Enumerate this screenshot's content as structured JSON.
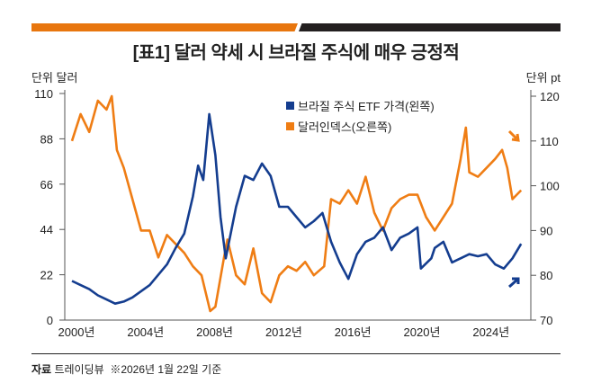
{
  "title": "[표1] 달러 약세 시 브라질 주식에 매우 긍정적",
  "left_unit": "단위 달러",
  "right_unit": "단위 pt",
  "source_label": "자료",
  "source_text": "트레이딩뷰",
  "note": "※2026년 1월 22일 기준",
  "colors": {
    "etf": "#143d8f",
    "dollar": "#ef7d14",
    "accent_bar": "#e8760e",
    "dark_bar": "#231f20"
  },
  "chart_data": {
    "type": "line",
    "title": "[표1] 달러 약세 시 브라질 주식에 매우 긍정적",
    "xlabel": "",
    "ylabel": "단위 달러",
    "y2label": "단위 pt",
    "xlim": [
      2000,
      2026.1
    ],
    "ylim": [
      0,
      110
    ],
    "y2lim": [
      70,
      120
    ],
    "x_ticks": [
      2000,
      2004,
      2008,
      2012,
      2016,
      2020,
      2024
    ],
    "x_tick_labels": [
      "2000년",
      "2004년",
      "2008년",
      "2012년",
      "2016년",
      "2020년",
      "2024년"
    ],
    "y_ticks": [
      0,
      22,
      44,
      66,
      88,
      110
    ],
    "y2_ticks": [
      70,
      80,
      90,
      100,
      110,
      120
    ],
    "legend_position": "top-right",
    "series": [
      {
        "name": "브라질 주식 ETF 가격(왼쪽)",
        "axis": "left",
        "x": [
          2000,
          2000.5,
          2001,
          2001.5,
          2002,
          2002.5,
          2003,
          2003.5,
          2004,
          2004.5,
          2005,
          2005.5,
          2006,
          2006.5,
          2007,
          2007.3,
          2007.6,
          2007.95,
          2008.3,
          2008.6,
          2008.9,
          2009.5,
          2010,
          2010.5,
          2011,
          2011.5,
          2012,
          2012.5,
          2013,
          2013.5,
          2014,
          2014.5,
          2015,
          2015.5,
          2016,
          2016.5,
          2017,
          2017.5,
          2018,
          2018.5,
          2019,
          2019.5,
          2020,
          2020.2,
          2020.8,
          2021,
          2021.5,
          2022,
          2022.5,
          2023,
          2023.5,
          2024,
          2024.5,
          2025,
          2025.5,
          2026
        ],
        "values": [
          19,
          17,
          15,
          12,
          10,
          8,
          9,
          11,
          14,
          17,
          22,
          27,
          35,
          42,
          60,
          75,
          68,
          100,
          80,
          50,
          30,
          55,
          70,
          68,
          76,
          70,
          55,
          55,
          50,
          45,
          48,
          52,
          38,
          28,
          20,
          32,
          38,
          40,
          45,
          34,
          40,
          42,
          45,
          25,
          30,
          35,
          38,
          28,
          30,
          32,
          31,
          32,
          27,
          25,
          30,
          37
        ]
      },
      {
        "name": "달러인덱스(오른쪽)",
        "axis": "right",
        "x": [
          2000,
          2000.5,
          2001,
          2001.5,
          2002,
          2002.3,
          2002.6,
          2003,
          2003.5,
          2004,
          2004.5,
          2005,
          2005.5,
          2006,
          2006.5,
          2007,
          2007.5,
          2008,
          2008.3,
          2008.8,
          2009,
          2009.5,
          2010,
          2010.5,
          2011,
          2011.5,
          2012,
          2012.5,
          2013,
          2013.5,
          2014,
          2014.6,
          2015,
          2015.5,
          2016,
          2016.5,
          2017,
          2017.5,
          2018,
          2018.5,
          2019,
          2019.5,
          2020,
          2020.5,
          2021,
          2021.5,
          2022,
          2022.5,
          2022.8,
          2023,
          2023.5,
          2024,
          2024.5,
          2024.9,
          2025.2,
          2025.5,
          2026
        ],
        "values": [
          110,
          116,
          112,
          119,
          117,
          120,
          108,
          104,
          97,
          90,
          90,
          84,
          89,
          87,
          85,
          82,
          80,
          72,
          73,
          84,
          88,
          80,
          78,
          86,
          76,
          74,
          80,
          82,
          81,
          83,
          80,
          82,
          97,
          96,
          99,
          96,
          102,
          94,
          90,
          95,
          97,
          98,
          98,
          93,
          90,
          93,
          96,
          106,
          113,
          103,
          102,
          104,
          106,
          108,
          104,
          97,
          99
        ]
      }
    ]
  }
}
